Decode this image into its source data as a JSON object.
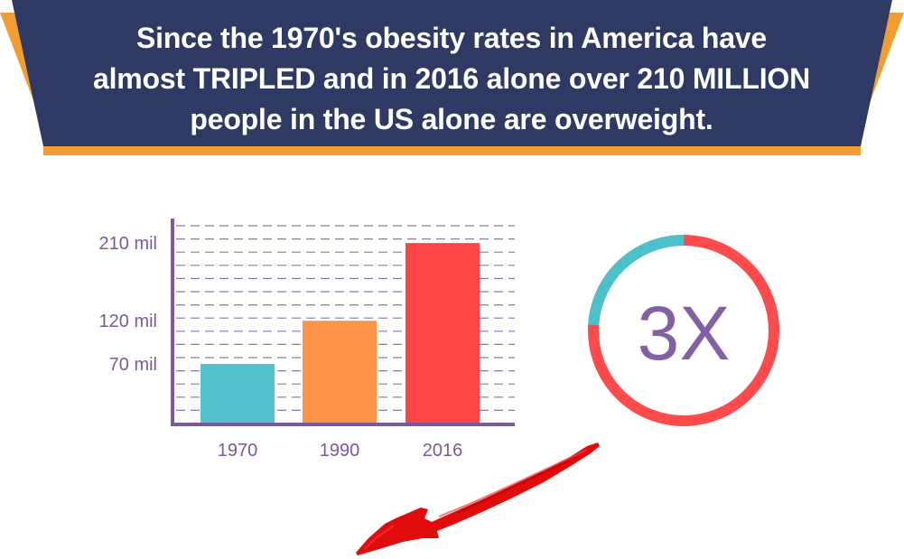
{
  "headline": {
    "line1": "Since the 1970's obesity rates in America have",
    "line2": "almost TRIPLED and in 2016 alone over 210 MILLION",
    "line3": "people in the US alone are overweight."
  },
  "colors": {
    "banner_navy": "#2e3a63",
    "banner_orange": "#f39c32",
    "axis_purple": "#7a5a9b",
    "bar_teal": "#52c3cc",
    "bar_orange": "#ff9447",
    "bar_red": "#ff4545",
    "ring_teal": "#4bc2cb",
    "ring_red": "#ff4b4b",
    "arrow_red": "#e00b0b"
  },
  "chart_data": {
    "type": "bar",
    "categories": [
      "1970",
      "1990",
      "2016"
    ],
    "values": [
      70,
      120,
      210
    ],
    "title": "",
    "xlabel": "",
    "ylabel": "",
    "ylim": [
      0,
      230
    ],
    "yticks": [
      70,
      120,
      210
    ],
    "ytick_labels": [
      "70 mil",
      "120 mil",
      "210 mil"
    ],
    "grid": true,
    "bar_colors": [
      "#52c3cc",
      "#ff9447",
      "#ff4545"
    ]
  },
  "multiplier": {
    "label": "3X",
    "ring_highlight_fraction": 0.24
  },
  "arrow": {
    "icon": "down-left-arrow-icon"
  }
}
